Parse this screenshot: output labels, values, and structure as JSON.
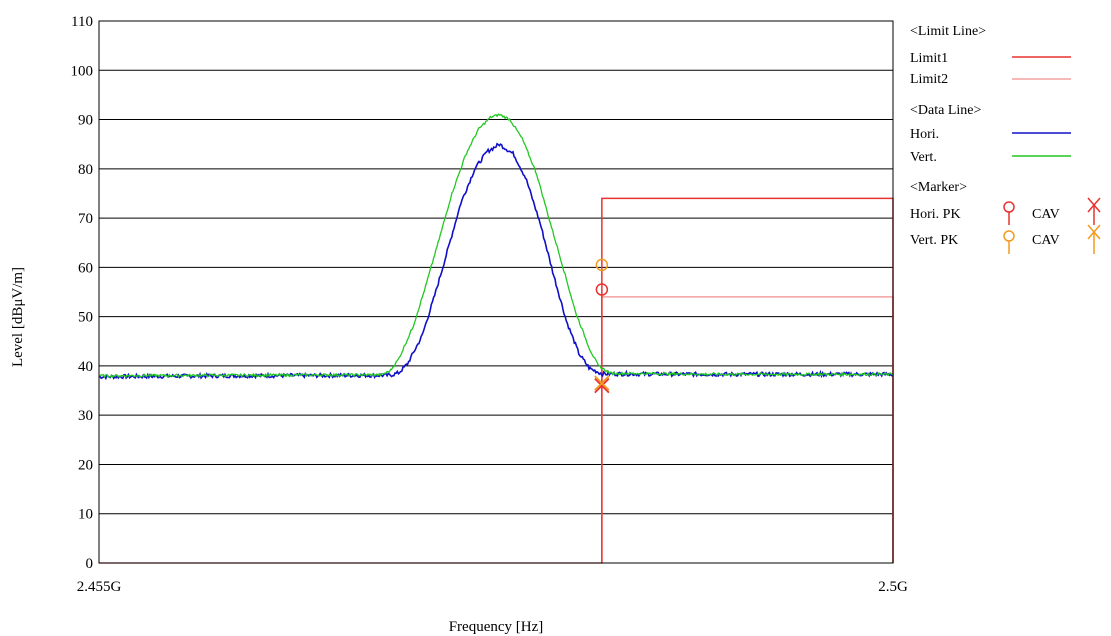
{
  "chart_data": {
    "type": "line",
    "title": "",
    "xlabel": "Frequency [Hz]",
    "ylabel": "Level [dBμV/m]",
    "xlim": [
      2.455,
      2.5
    ],
    "ylim": [
      0,
      110
    ],
    "x_unit": "GHz",
    "x_tick_labels": [
      {
        "value": 2.455,
        "label": "2.455G"
      },
      {
        "value": 2.5,
        "label": "2.5G"
      }
    ],
    "y_ticks": [
      0,
      10,
      20,
      30,
      40,
      50,
      60,
      70,
      80,
      90,
      100,
      110
    ],
    "grid": "horizontal",
    "legend_placement": "right",
    "limit_lines": [
      {
        "name": "Limit1",
        "color": "#e8322e",
        "points": [
          [
            2.4835,
            0
          ],
          [
            2.4835,
            74
          ],
          [
            2.5,
            74
          ],
          [
            2.5,
            0
          ]
        ]
      },
      {
        "name": "Limit2",
        "color": "#f4a0a0",
        "points": [
          [
            2.455,
            0
          ],
          [
            2.4835,
            0
          ],
          [
            2.4835,
            54
          ],
          [
            2.5,
            54
          ],
          [
            2.5,
            0
          ]
        ]
      }
    ],
    "series": [
      {
        "name": "Hori.",
        "color": "#1010c8",
        "points": [
          [
            2.455,
            37.8
          ],
          [
            2.462,
            38.0
          ],
          [
            2.4715,
            38.1
          ],
          [
            2.472,
            38.6
          ],
          [
            2.4725,
            40.5
          ],
          [
            2.4733,
            46
          ],
          [
            2.474,
            54
          ],
          [
            2.4748,
            64
          ],
          [
            2.4755,
            73
          ],
          [
            2.4763,
            80
          ],
          [
            2.477,
            83.5
          ],
          [
            2.4777,
            85
          ],
          [
            2.4785,
            83
          ],
          [
            2.4792,
            78
          ],
          [
            2.48,
            69
          ],
          [
            2.4808,
            58
          ],
          [
            2.4815,
            49
          ],
          [
            2.4822,
            42.5
          ],
          [
            2.4828,
            39.5
          ],
          [
            2.4835,
            38.4
          ],
          [
            2.49,
            38.3
          ],
          [
            2.5,
            38.3
          ]
        ]
      },
      {
        "name": "Vert.",
        "color": "#22c822",
        "points": [
          [
            2.455,
            38.0
          ],
          [
            2.462,
            38.1
          ],
          [
            2.471,
            38.2
          ],
          [
            2.4715,
            39.0
          ],
          [
            2.472,
            41.5
          ],
          [
            2.4728,
            48
          ],
          [
            2.4735,
            56
          ],
          [
            2.4743,
            66
          ],
          [
            2.475,
            75
          ],
          [
            2.4758,
            83
          ],
          [
            2.4765,
            88
          ],
          [
            2.4772,
            90.5
          ],
          [
            2.4777,
            91
          ],
          [
            2.4783,
            90
          ],
          [
            2.479,
            86
          ],
          [
            2.4798,
            79
          ],
          [
            2.4805,
            70
          ],
          [
            2.4813,
            60
          ],
          [
            2.482,
            51
          ],
          [
            2.4828,
            43.5
          ],
          [
            2.4833,
            40
          ],
          [
            2.484,
            38.5
          ],
          [
            2.49,
            38.3
          ],
          [
            2.5,
            38.3
          ]
        ]
      }
    ],
    "markers": [
      {
        "series": "Hori.",
        "type": "PK",
        "x": 2.4835,
        "y": 55.5,
        "color": "#e8322e",
        "symbol": "circle"
      },
      {
        "series": "Vert.",
        "type": "PK",
        "x": 2.4835,
        "y": 60.5,
        "color": "#f39a1e",
        "symbol": "circle"
      },
      {
        "series": "Hori.",
        "type": "CAV",
        "x": 2.4835,
        "y": 36.0,
        "color": "#e8322e",
        "symbol": "x"
      },
      {
        "series": "Vert.",
        "type": "CAV",
        "x": 2.4835,
        "y": 36.5,
        "color": "#f39a1e",
        "symbol": "x"
      }
    ]
  },
  "legend": {
    "limit_header": "<Limit Line>",
    "limit1": "Limit1",
    "limit2": "Limit2",
    "data_header": "<Data Line>",
    "hori": "Hori.",
    "vert": "Vert.",
    "marker_header": "<Marker>",
    "hori_pk": "Hori.  PK",
    "vert_pk": "Vert.  PK",
    "cav": "CAV",
    "colors": {
      "limit1": "#e8322e",
      "limit2": "#f4a0a0",
      "hori": "#1010c8",
      "vert": "#22c822",
      "hori_marker": "#e8322e",
      "vert_marker": "#f39a1e"
    }
  }
}
